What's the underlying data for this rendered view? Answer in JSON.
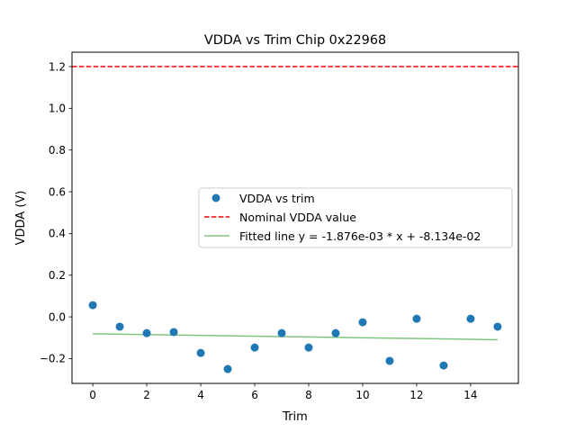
{
  "chart_data": {
    "type": "scatter",
    "title": "VDDA vs Trim Chip 0x22968",
    "xlabel": "Trim",
    "ylabel": "VDDA (V)",
    "xlim": [
      -0.77,
      15.77
    ],
    "ylim": [
      -0.319,
      1.269
    ],
    "xticks": [
      0,
      2,
      4,
      6,
      8,
      10,
      12,
      14
    ],
    "xtick_labels": [
      "0",
      "2",
      "4",
      "6",
      "8",
      "10",
      "12",
      "14"
    ],
    "yticks": [
      -0.2,
      0.0,
      0.2,
      0.4,
      0.6,
      0.8,
      1.0,
      1.2
    ],
    "ytick_labels": [
      "−0.2",
      "0.0",
      "0.2",
      "0.4",
      "0.6",
      "0.8",
      "1.0",
      "1.2"
    ],
    "grid": false,
    "legend_position": "center-right",
    "series": [
      {
        "name": "VDDA vs trim",
        "kind": "scatter",
        "color": "#1f77b4",
        "x": [
          0,
          1,
          2,
          3,
          4,
          5,
          6,
          7,
          8,
          9,
          10,
          11,
          12,
          13,
          14,
          15
        ],
        "y": [
          0.056,
          -0.047,
          -0.078,
          -0.073,
          -0.173,
          -0.25,
          -0.147,
          -0.078,
          -0.147,
          -0.078,
          -0.026,
          -0.211,
          -0.009,
          -0.233,
          -0.009,
          -0.047
        ]
      },
      {
        "name": "Nominal VDDA value",
        "kind": "hline",
        "color": "#ff0000",
        "linestyle": "dashed",
        "y": 1.2
      },
      {
        "name": "Fitted line y = -1.876e-03 * x + -8.134e-02",
        "kind": "line",
        "color": "#2ca02c",
        "slope": -0.001876,
        "intercept": -0.08134,
        "x": [
          0,
          15
        ]
      }
    ]
  }
}
